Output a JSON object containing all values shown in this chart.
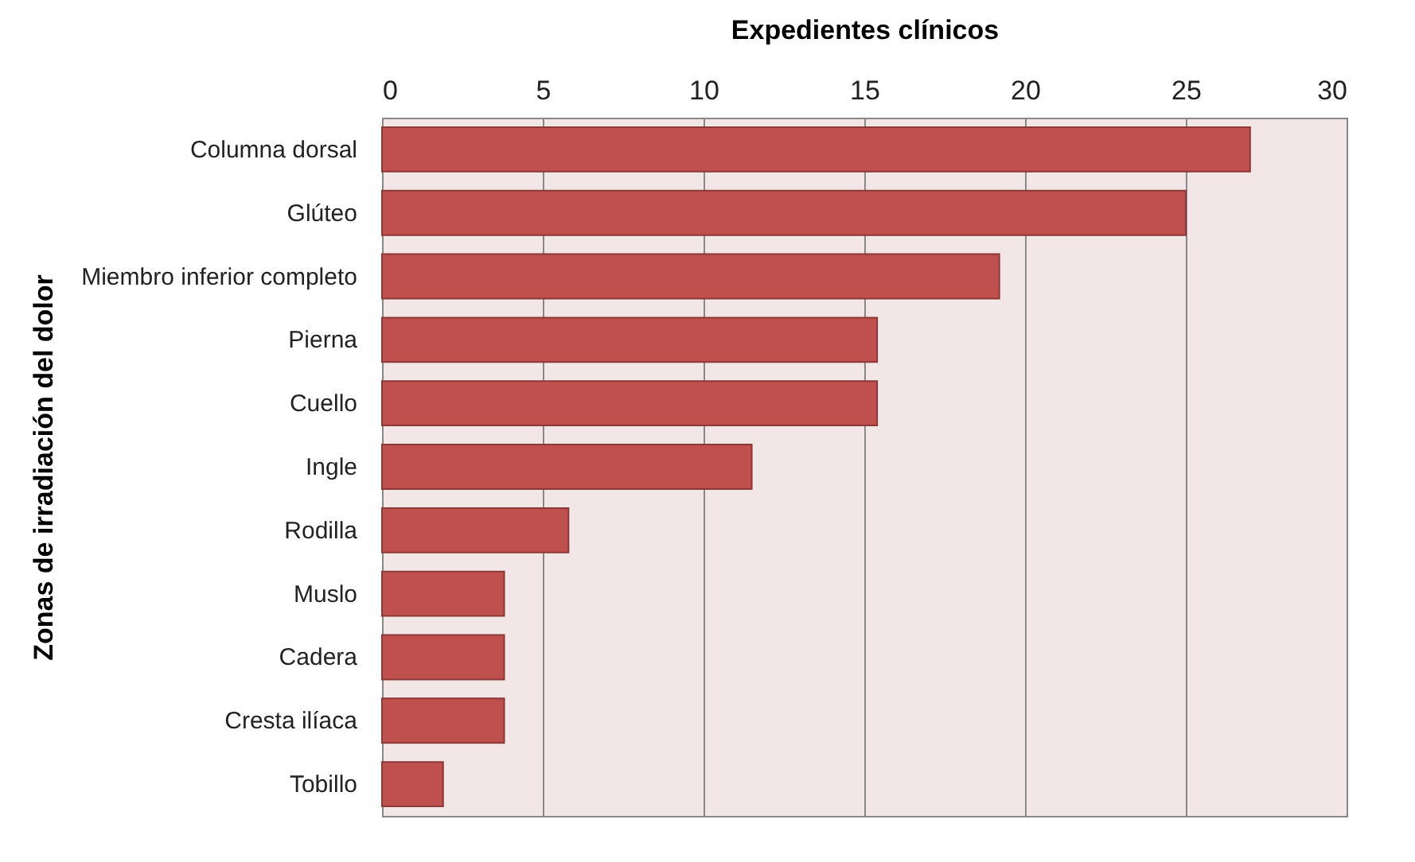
{
  "chart_data": {
    "type": "bar",
    "orientation": "horizontal",
    "xlabel": "Expedientes clínicos",
    "ylabel": "Zonas de irradiación del dolor",
    "categories": [
      "Columna dorsal",
      "Glúteo",
      "Miembro inferior completo",
      "Pierna",
      "Cuello",
      "Ingle",
      "Rodilla",
      "Muslo",
      "Cadera",
      "Cresta ilíaca",
      "Tobillo"
    ],
    "values": [
      27,
      25,
      19.2,
      15.4,
      15.4,
      11.5,
      5.8,
      3.8,
      3.8,
      3.8,
      1.9
    ],
    "color": "#c0504d",
    "xlim": [
      0,
      30
    ],
    "xticks": [
      0,
      5,
      10,
      15,
      20,
      25,
      30
    ],
    "grid": "x"
  }
}
